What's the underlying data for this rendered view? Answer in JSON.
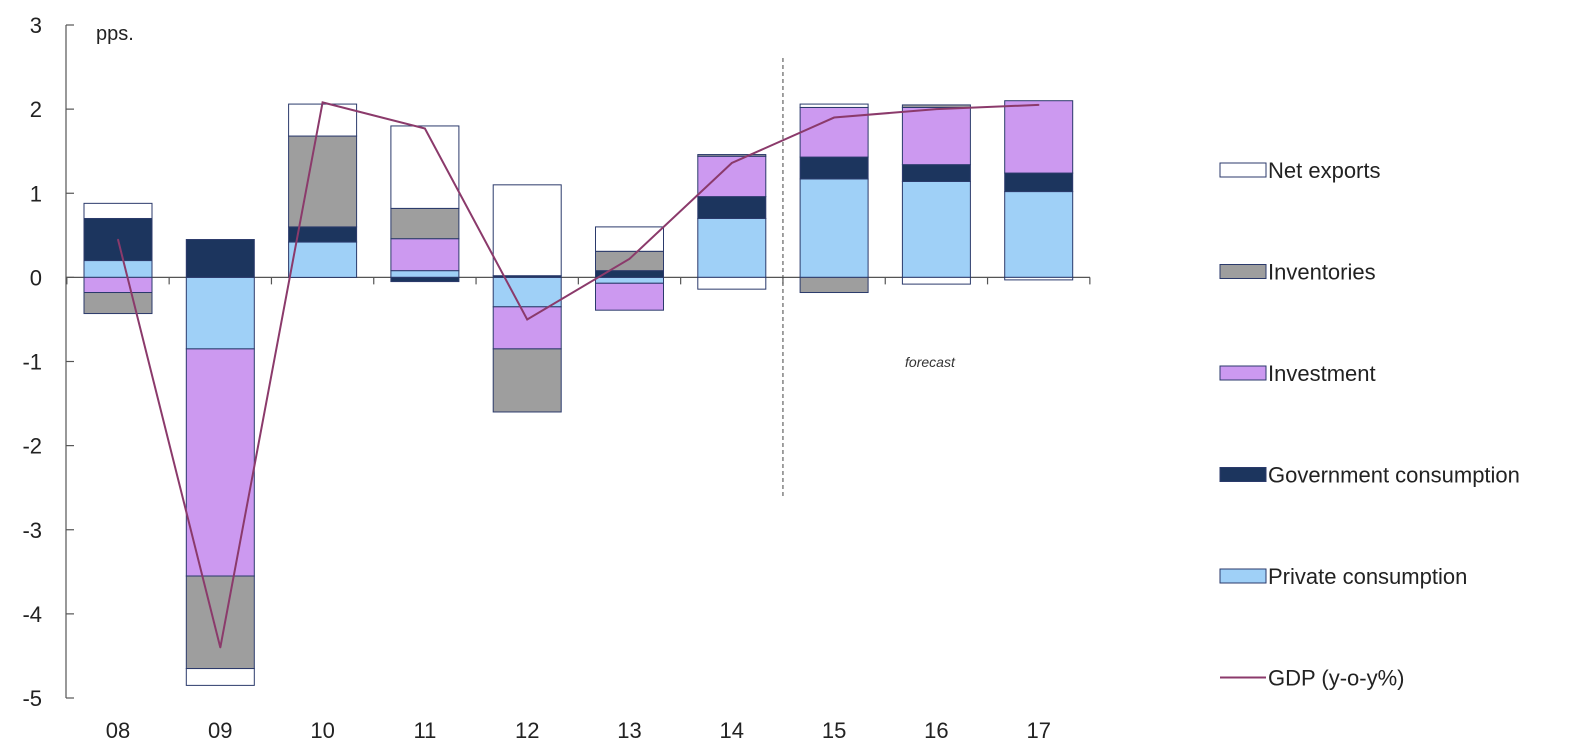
{
  "chart_data": {
    "type": "bar",
    "stacked": true,
    "unit_label": "pps.",
    "categories": [
      "08",
      "09",
      "10",
      "11",
      "12",
      "13",
      "14",
      "15",
      "16",
      "17"
    ],
    "ylim": [
      -5,
      3
    ],
    "yticks": [
      3,
      2,
      1,
      0,
      -1,
      -2,
      -3,
      -4,
      -5
    ],
    "grid": false,
    "legend_position": "right",
    "series": [
      {
        "name": "Private consumption",
        "color": "#9fd0f7",
        "values": [
          0.2,
          -0.85,
          0.42,
          0.08,
          -0.35,
          -0.07,
          0.7,
          1.17,
          1.14,
          1.02
        ]
      },
      {
        "name": "Government consumption",
        "color": "#1c355e",
        "values": [
          0.5,
          0.45,
          0.18,
          -0.05,
          0.02,
          0.08,
          0.26,
          0.26,
          0.2,
          0.22
        ]
      },
      {
        "name": "Investment",
        "color": "#cc99f0",
        "values": [
          -0.18,
          -2.7,
          0.0,
          0.38,
          -0.5,
          -0.32,
          0.48,
          0.59,
          0.68,
          0.86
        ]
      },
      {
        "name": "Inventories",
        "color": "#9e9e9e",
        "values": [
          -0.25,
          -1.1,
          1.08,
          0.36,
          -0.75,
          0.23,
          0.02,
          -0.18,
          0.03,
          0.0
        ]
      },
      {
        "name": "Net exports",
        "color": "#ffffff",
        "values": [
          0.18,
          -0.2,
          0.38,
          0.98,
          1.08,
          0.29,
          -0.14,
          0.04,
          -0.08,
          -0.03
        ]
      }
    ],
    "line_series": {
      "name": "GDP (y-o-y%)",
      "color": "#8b3a6b",
      "values": [
        0.45,
        -4.4,
        2.08,
        1.77,
        -0.5,
        0.22,
        1.36,
        1.9,
        2.0,
        2.05
      ]
    },
    "divider_after_category": "14",
    "annotation": "forecast",
    "legend_order": [
      "Net exports",
      "Inventories",
      "Investment",
      "Government consumption",
      "Private consumption",
      "GDP (y-o-y%)"
    ]
  }
}
